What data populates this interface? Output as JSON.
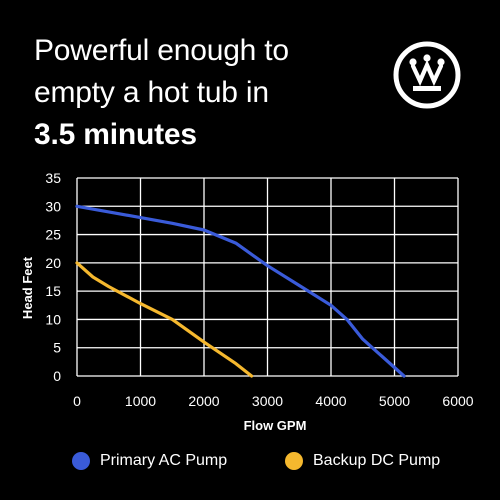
{
  "headline": {
    "line1": "Powerful enough to",
    "line2": "empty a hot tub in",
    "line3": "3.5 minutes"
  },
  "logo": {
    "icon": "westinghouse-logo-icon"
  },
  "colors": {
    "background": "#000000",
    "primary_series": "#3a5bd9",
    "backup_series": "#f5b82e",
    "grid": "#ffffff",
    "text": "#ffffff"
  },
  "chart_data": {
    "type": "line",
    "title": "",
    "xlabel": "Flow GPM",
    "ylabel": "Head Feet",
    "xlim": [
      0,
      6000
    ],
    "ylim": [
      0,
      35
    ],
    "xticks": [
      0,
      1000,
      2000,
      3000,
      4000,
      5000,
      6000
    ],
    "yticks": [
      0,
      5,
      10,
      15,
      20,
      25,
      30,
      35
    ],
    "grid": true,
    "legend_position": "bottom",
    "series": [
      {
        "name": "Primary AC Pump",
        "color": "#3a5bd9",
        "x": [
          0,
          500,
          1000,
          1500,
          2000,
          2500,
          3000,
          3500,
          4000,
          4250,
          4500,
          5000,
          5150
        ],
        "y": [
          30,
          29,
          28,
          27,
          25.8,
          23.5,
          19.5,
          16,
          12.5,
          10,
          6.5,
          1.5,
          0
        ]
      },
      {
        "name": "Backup DC Pump",
        "color": "#f5b82e",
        "x": [
          0,
          250,
          500,
          1000,
          1500,
          1750,
          2000,
          2500,
          2750
        ],
        "y": [
          20,
          17.5,
          15.8,
          12.8,
          10,
          8,
          6,
          2.2,
          0
        ]
      }
    ]
  }
}
